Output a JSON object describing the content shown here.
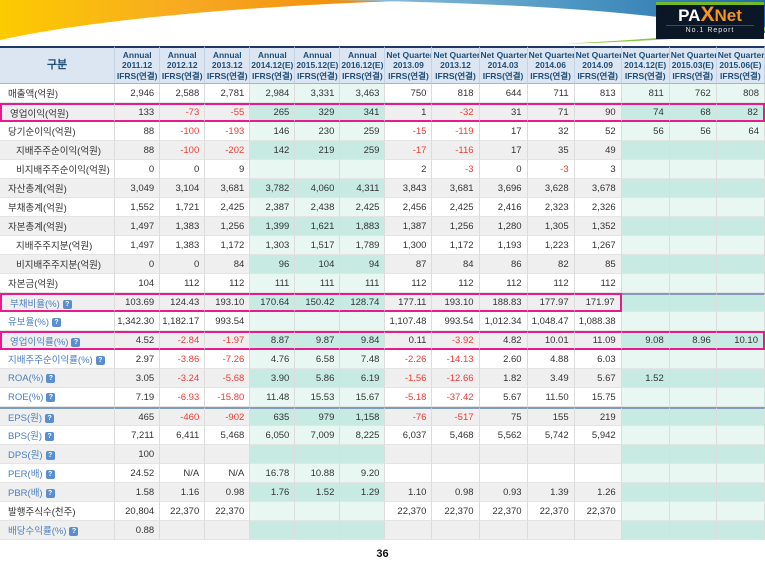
{
  "banner": {
    "logo_pax": "PA",
    "logo_x": "X",
    "logo_net": "Net",
    "tagline": "No.1 Report"
  },
  "page_number": "36",
  "colors": {
    "highlight_box": "#e61b8c",
    "negative_value": "#ee3b33",
    "estimate_cell_dark": "#c7eae2",
    "estimate_cell_light": "#e9f7f3",
    "header_text": "#1f4e79",
    "ratio_label_blue": "#4a7ebf",
    "banner_orange": "#f7a823",
    "banner_blue": "#3c8dbc",
    "logo_green": "#76b82a",
    "logo_orange": "#f7941d"
  },
  "table": {
    "corner_label": "구분",
    "info_icon_glyph": "?",
    "columns": [
      {
        "period": "Annual",
        "date": "2011.12",
        "basis": "IFRS(연결)",
        "estimate": false
      },
      {
        "period": "Annual",
        "date": "2012.12",
        "basis": "IFRS(연결)",
        "estimate": false
      },
      {
        "period": "Annual",
        "date": "2013.12",
        "basis": "IFRS(연결)",
        "estimate": false
      },
      {
        "period": "Annual",
        "date": "2014.12(E)",
        "basis": "IFRS(연결)",
        "estimate": true
      },
      {
        "period": "Annual",
        "date": "2015.12(E)",
        "basis": "IFRS(연결)",
        "estimate": true
      },
      {
        "period": "Annual",
        "date": "2016.12(E)",
        "basis": "IFRS(연결)",
        "estimate": true
      },
      {
        "period": "Net Quarter",
        "date": "2013.09",
        "basis": "IFRS(연결)",
        "estimate": false
      },
      {
        "period": "Net Quarter",
        "date": "2013.12",
        "basis": "IFRS(연결)",
        "estimate": false
      },
      {
        "period": "Net Quarter",
        "date": "2014.03",
        "basis": "IFRS(연결)",
        "estimate": false
      },
      {
        "period": "Net Quarter",
        "date": "2014.06",
        "basis": "IFRS(연결)",
        "estimate": false
      },
      {
        "period": "Net Quarter",
        "date": "2014.09",
        "basis": "IFRS(연결)",
        "estimate": false
      },
      {
        "period": "Net Quarter",
        "date": "2014.12(E)",
        "basis": "IFRS(연결)",
        "estimate": true
      },
      {
        "period": "Net Quarter",
        "date": "2015.03(E)",
        "basis": "IFRS(연결)",
        "estimate": true
      },
      {
        "period": "Net Quarter",
        "date": "2015.06(E)",
        "basis": "IFRS(연결)",
        "estimate": true
      }
    ],
    "rows": [
      {
        "label": "매출액(억원)",
        "indent": false,
        "link": false,
        "values": [
          "2,946",
          "2,588",
          "2,781",
          "2,984",
          "3,331",
          "3,463",
          "750",
          "818",
          "644",
          "711",
          "813",
          "811",
          "762",
          "808"
        ]
      },
      {
        "label": "영업이익(억원)",
        "indent": false,
        "link": false,
        "box": {
          "from": 0,
          "to": 14
        },
        "values": [
          "133",
          "-73",
          "-55",
          "265",
          "329",
          "341",
          "1",
          "-32",
          "31",
          "71",
          "90",
          "74",
          "68",
          "82"
        ]
      },
      {
        "label": "당기순이익(억원)",
        "indent": false,
        "link": false,
        "values": [
          "88",
          "-100",
          "-193",
          "146",
          "230",
          "259",
          "-15",
          "-119",
          "17",
          "32",
          "52",
          "56",
          "56",
          "64"
        ]
      },
      {
        "label": "지배주주순이익(억원)",
        "indent": true,
        "link": false,
        "values": [
          "88",
          "-100",
          "-202",
          "142",
          "219",
          "259",
          "-17",
          "-116",
          "17",
          "35",
          "49",
          "",
          "",
          ""
        ]
      },
      {
        "label": "비지배주주순이익(억원)",
        "indent": true,
        "link": false,
        "values": [
          "0",
          "0",
          "9",
          "",
          "",
          "",
          "2",
          "-3",
          "0",
          "-3",
          "3",
          "",
          "",
          ""
        ]
      },
      {
        "label": "자산총계(억원)",
        "indent": false,
        "link": false,
        "values": [
          "3,049",
          "3,104",
          "3,681",
          "3,782",
          "4,060",
          "4,311",
          "3,843",
          "3,681",
          "3,696",
          "3,628",
          "3,678",
          "",
          "",
          ""
        ]
      },
      {
        "label": "부채총계(억원)",
        "indent": false,
        "link": false,
        "values": [
          "1,552",
          "1,721",
          "2,425",
          "2,387",
          "2,438",
          "2,425",
          "2,456",
          "2,425",
          "2,416",
          "2,323",
          "2,326",
          "",
          "",
          ""
        ]
      },
      {
        "label": "자본총계(억원)",
        "indent": false,
        "link": false,
        "values": [
          "1,497",
          "1,383",
          "1,256",
          "1,399",
          "1,621",
          "1,883",
          "1,387",
          "1,256",
          "1,280",
          "1,305",
          "1,352",
          "",
          "",
          ""
        ]
      },
      {
        "label": "지배주주지분(억원)",
        "indent": true,
        "link": false,
        "values": [
          "1,497",
          "1,383",
          "1,172",
          "1,303",
          "1,517",
          "1,789",
          "1,300",
          "1,172",
          "1,193",
          "1,223",
          "1,267",
          "",
          "",
          ""
        ]
      },
      {
        "label": "비지배주주지분(억원)",
        "indent": true,
        "link": false,
        "values": [
          "0",
          "0",
          "84",
          "96",
          "104",
          "94",
          "87",
          "84",
          "86",
          "82",
          "85",
          "",
          "",
          ""
        ]
      },
      {
        "label": "자본금(억원)",
        "indent": false,
        "link": false,
        "values": [
          "104",
          "112",
          "112",
          "111",
          "111",
          "111",
          "112",
          "112",
          "112",
          "112",
          "112",
          "",
          "",
          ""
        ]
      },
      {
        "label": "부채비율(%)",
        "indent": false,
        "link": true,
        "divider_above": true,
        "box": {
          "from": 0,
          "to": 11
        },
        "values": [
          "103.69",
          "124.43",
          "193.10",
          "170.64",
          "150.42",
          "128.74",
          "177.11",
          "193.10",
          "188.83",
          "177.97",
          "171.97",
          "",
          "",
          ""
        ]
      },
      {
        "label": "유보율(%)",
        "indent": false,
        "link": true,
        "values": [
          "1,342.30",
          "1,182.17",
          "993.54",
          "",
          "",
          "",
          "1,107.48",
          "993.54",
          "1,012.34",
          "1,048.47",
          "1,088.38",
          "",
          "",
          ""
        ]
      },
      {
        "label": "영업이익률(%)",
        "indent": false,
        "link": true,
        "box": {
          "from": 0,
          "to": 14
        },
        "values": [
          "4.52",
          "-2.84",
          "-1.97",
          "8.87",
          "9.87",
          "9.84",
          "0.11",
          "-3.92",
          "4.82",
          "10.01",
          "11.09",
          "9.08",
          "8.96",
          "10.10"
        ]
      },
      {
        "label": "지배주주순이익률(%)",
        "indent": false,
        "link": true,
        "values": [
          "2.97",
          "-3.86",
          "-7.26",
          "4.76",
          "6.58",
          "7.48",
          "-2.26",
          "-14.13",
          "2.60",
          "4.88",
          "6.03",
          "",
          "",
          ""
        ]
      },
      {
        "label": "ROA(%)",
        "indent": false,
        "link": true,
        "values": [
          "3.05",
          "-3.24",
          "-5.68",
          "3.90",
          "5.86",
          "6.19",
          "-1.56",
          "-12.66",
          "1.82",
          "3.49",
          "5.67",
          "1.52",
          "",
          ""
        ]
      },
      {
        "label": "ROE(%)",
        "indent": false,
        "link": true,
        "values": [
          "7.19",
          "-6.93",
          "-15.80",
          "11.48",
          "15.53",
          "15.67",
          "-5.18",
          "-37.42",
          "5.67",
          "11.50",
          "15.75",
          "",
          "",
          ""
        ]
      },
      {
        "label": "EPS(원)",
        "indent": false,
        "link": true,
        "divider_above": true,
        "values": [
          "465",
          "-460",
          "-902",
          "635",
          "979",
          "1,158",
          "-76",
          "-517",
          "75",
          "155",
          "219",
          "",
          "",
          ""
        ]
      },
      {
        "label": "BPS(원)",
        "indent": false,
        "link": true,
        "values": [
          "7,211",
          "6,411",
          "5,468",
          "6,050",
          "7,009",
          "8,225",
          "6,037",
          "5,468",
          "5,562",
          "5,742",
          "5,942",
          "",
          "",
          ""
        ]
      },
      {
        "label": "DPS(원)",
        "indent": false,
        "link": true,
        "values": [
          "100",
          "",
          "",
          "",
          "",
          "",
          "",
          "",
          "",
          "",
          "",
          "",
          "",
          ""
        ]
      },
      {
        "label": "PER(배)",
        "indent": false,
        "link": true,
        "values": [
          "24.52",
          "N/A",
          "N/A",
          "16.78",
          "10.88",
          "9.20",
          "",
          "",
          "",
          "",
          "",
          "",
          "",
          ""
        ]
      },
      {
        "label": "PBR(배)",
        "indent": false,
        "link": true,
        "values": [
          "1.58",
          "1.16",
          "0.98",
          "1.76",
          "1.52",
          "1.29",
          "1.10",
          "0.98",
          "0.93",
          "1.39",
          "1.26",
          "",
          "",
          ""
        ]
      },
      {
        "label": "발행주식수(천주)",
        "indent": false,
        "link": false,
        "values": [
          "20,804",
          "22,370",
          "22,370",
          "",
          "",
          "",
          "22,370",
          "22,370",
          "22,370",
          "22,370",
          "22,370",
          "",
          "",
          ""
        ]
      },
      {
        "label": "배당수익률(%)",
        "indent": false,
        "link": true,
        "values": [
          "0.88",
          "",
          "",
          "",
          "",
          "",
          "",
          "",
          "",
          "",
          "",
          "",
          "",
          ""
        ]
      }
    ]
  }
}
